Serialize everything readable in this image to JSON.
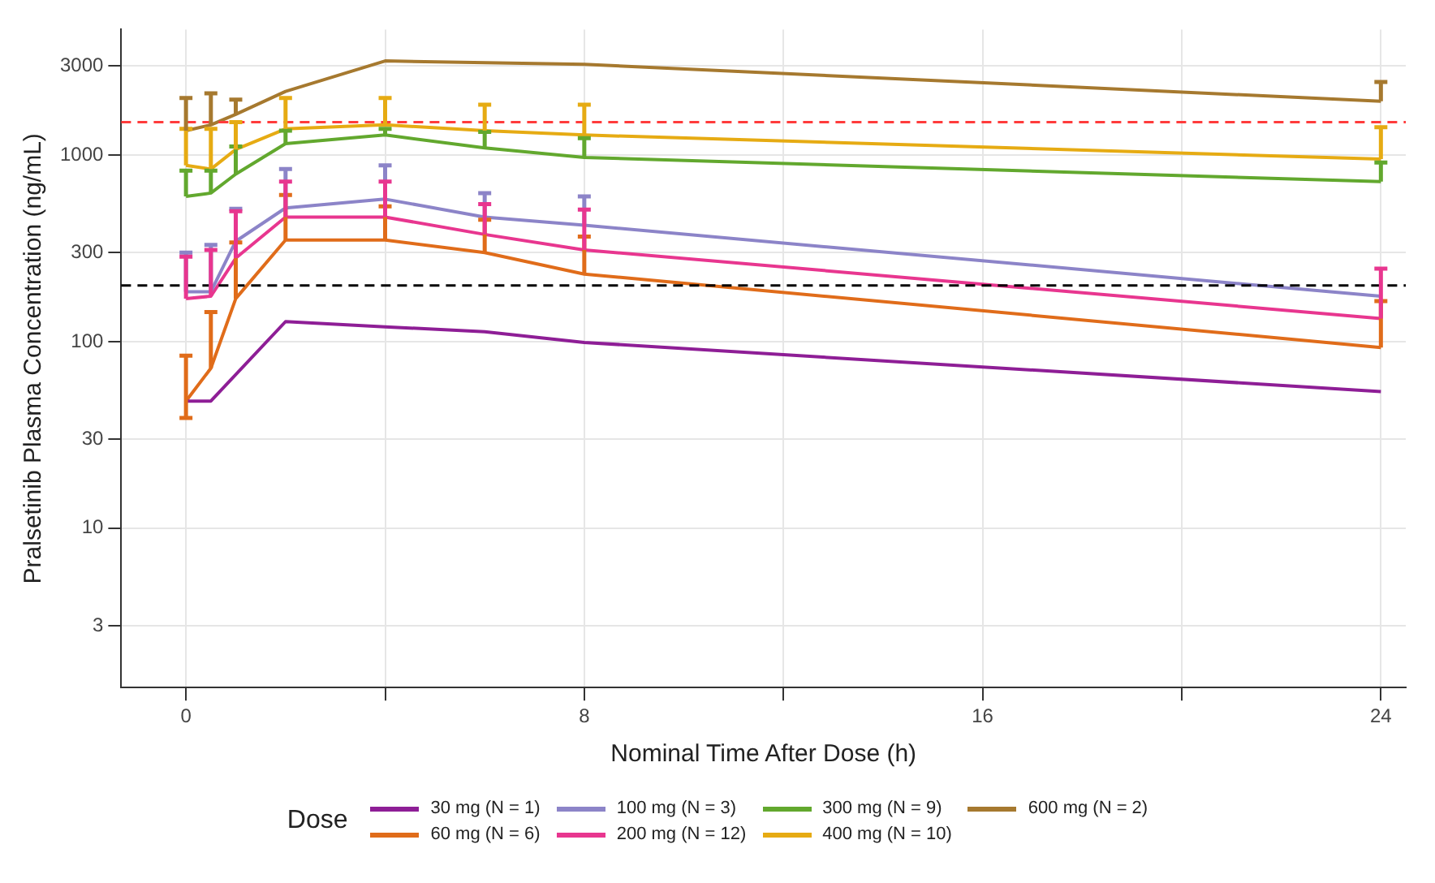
{
  "chart_data": {
    "type": "line",
    "xlabel": "Nominal Time After Dose (h)",
    "ylabel": "Pralsetinib Plasma Concentration (ng/mL)",
    "legend_title": "Dose",
    "legend": "bottom",
    "grid": true,
    "log": "y",
    "marker": "none",
    "line_style": "solid",
    "x": [
      0,
      0.5,
      1,
      2,
      4,
      6,
      8,
      24
    ],
    "xlim": [
      -1.3,
      24.5
    ],
    "xticks": [
      0,
      {
        "value": 4,
        "label": null
      },
      8,
      {
        "value": 12,
        "label": null
      },
      16,
      {
        "value": 20,
        "label": null
      },
      24
    ],
    "ylim": [
      1.4,
      4700
    ],
    "yticks": [
      3,
      10,
      30,
      100,
      300,
      1000,
      3000
    ],
    "series": [
      {
        "name": "30 mg (N = 1)",
        "color": "#8e1e96",
        "values": [
          48,
          48,
          128,
          120,
          113,
          99,
          54
        ],
        "x": [
          0,
          0.5,
          2,
          4,
          6,
          8,
          24
        ]
      },
      {
        "name": "60 mg (N = 6)",
        "color": "#e06c1a",
        "values": [
          48,
          72,
          170,
          350,
          350,
          300,
          230,
          93
        ],
        "errors": [
          [
            39,
            84
          ],
          [
            72,
            144
          ],
          [
            170,
            340
          ],
          [
            350,
            610
          ],
          [
            350,
            530
          ],
          [
            300,
            450
          ],
          [
            230,
            365
          ],
          [
            93,
            165
          ]
        ]
      },
      {
        "name": "100 mg (N = 3)",
        "color": "#8c84c8",
        "values": [
          185,
          185,
          345,
          520,
          580,
          465,
          420,
          175
        ],
        "errors": [
          [
            185,
            300
          ],
          [
            185,
            330
          ],
          [
            345,
            515
          ],
          [
            520,
            840
          ],
          [
            580,
            880
          ],
          [
            465,
            625
          ],
          [
            420,
            600
          ],
          null
        ]
      },
      {
        "name": "200 mg (N = 12)",
        "color": "#e8368f",
        "values": [
          170,
          175,
          280,
          465,
          465,
          375,
          310,
          133
        ],
        "errors": [
          [
            170,
            285
          ],
          [
            175,
            310
          ],
          [
            280,
            500
          ],
          [
            465,
            720
          ],
          [
            465,
            720
          ],
          [
            375,
            545
          ],
          [
            310,
            510
          ],
          [
            133,
            246
          ]
        ]
      },
      {
        "name": "300 mg (N = 9)",
        "color": "#62a82e",
        "values": [
          600,
          625,
          790,
          1150,
          1280,
          1090,
          970,
          720
        ],
        "errors": [
          [
            600,
            825
          ],
          [
            625,
            825
          ],
          [
            790,
            1110
          ],
          [
            1150,
            1350
          ],
          [
            1280,
            1380
          ],
          [
            1090,
            1330
          ],
          [
            970,
            1230
          ],
          [
            720,
            910
          ]
        ]
      },
      {
        "name": "400 mg (N = 10)",
        "color": "#e6ab13",
        "values": [
          880,
          840,
          1070,
          1380,
          1450,
          1350,
          1280,
          950
        ],
        "errors": [
          [
            880,
            1380
          ],
          [
            840,
            1380
          ],
          [
            1070,
            1500
          ],
          [
            1380,
            2020
          ],
          [
            1450,
            2020
          ],
          [
            1350,
            1860
          ],
          [
            1280,
            1860
          ],
          [
            950,
            1410
          ]
        ]
      },
      {
        "name": "600 mg (N = 2)",
        "color": "#a6792f",
        "values": [
          1350,
          1450,
          1650,
          2190,
          3190,
          3060,
          1940
        ],
        "x": [
          0,
          0.5,
          1,
          2,
          4,
          8,
          24
        ],
        "errors": [
          [
            1350,
            2020
          ],
          [
            1450,
            2140
          ],
          [
            1650,
            1980
          ],
          null,
          null,
          null,
          [
            1940,
            2460
          ]
        ]
      }
    ],
    "ref_lines": [
      {
        "axis": "y",
        "value": 1500,
        "color": "#ff3b3b",
        "line_style": "dashed"
      },
      {
        "axis": "y",
        "value": 200,
        "color": "#000000",
        "line_style": "dashed"
      }
    ]
  }
}
